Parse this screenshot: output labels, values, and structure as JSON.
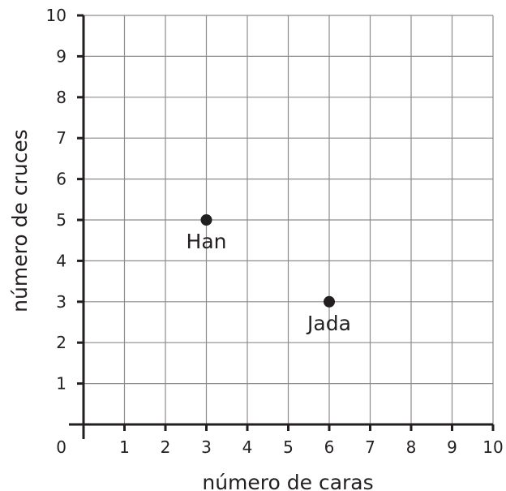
{
  "chart_data": {
    "type": "scatter",
    "title": "",
    "xlabel": "número de caras",
    "ylabel": "número de cruces",
    "xlim": [
      0,
      10
    ],
    "ylim": [
      0,
      10
    ],
    "xticks": [
      0,
      1,
      2,
      3,
      4,
      5,
      6,
      7,
      8,
      9,
      10
    ],
    "yticks": [
      1,
      2,
      3,
      4,
      5,
      6,
      7,
      8,
      9,
      10
    ],
    "origin_label": "0",
    "grid": true,
    "points": [
      {
        "label": "Han",
        "x": 3,
        "y": 5
      },
      {
        "label": "Jada",
        "x": 6,
        "y": 3
      }
    ],
    "colors": {
      "points": "#231f20",
      "grid": "#8c8c8c",
      "axes": "#231f20"
    }
  }
}
